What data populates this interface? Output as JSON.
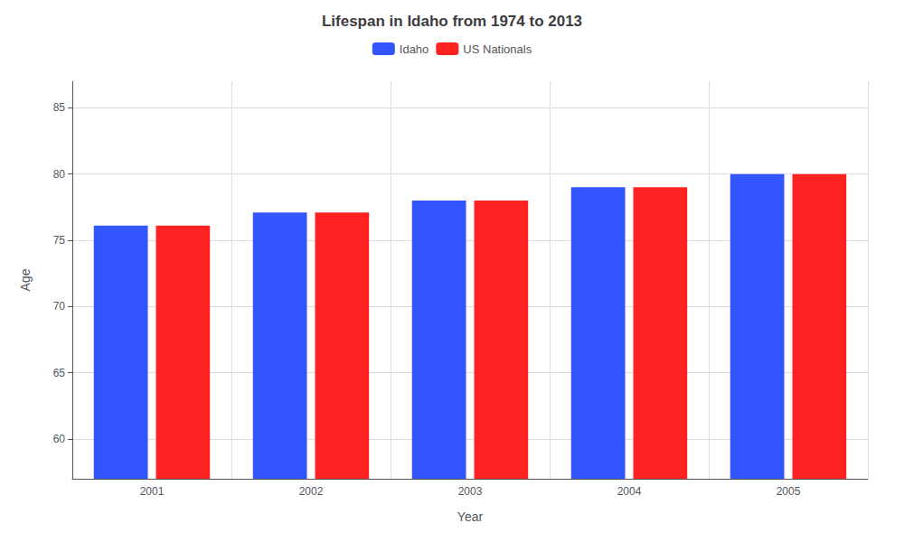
{
  "chart_data": {
    "type": "bar",
    "title": "Lifespan in Idaho from 1974 to 2013",
    "xlabel": "Year",
    "ylabel": "Age",
    "categories": [
      "2001",
      "2002",
      "2003",
      "2004",
      "2005"
    ],
    "series": [
      {
        "name": "Idaho",
        "color": "#3355ff",
        "values": [
          76.1,
          77.1,
          78.0,
          79.0,
          80.0
        ]
      },
      {
        "name": "US Nationals",
        "color": "#ff2222",
        "values": [
          76.1,
          77.1,
          78.0,
          79.0,
          80.0
        ]
      }
    ],
    "ylim": [
      57,
      87
    ],
    "yticks": [
      60,
      65,
      70,
      75,
      80,
      85
    ],
    "grid": true,
    "legend": "top"
  }
}
